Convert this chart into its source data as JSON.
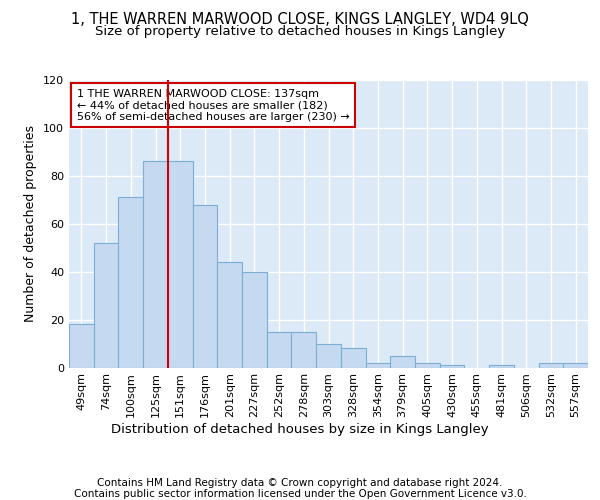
{
  "title": "1, THE WARREN MARWOOD CLOSE, KINGS LANGLEY, WD4 9LQ",
  "subtitle": "Size of property relative to detached houses in Kings Langley",
  "xlabel": "Distribution of detached houses by size in Kings Langley",
  "ylabel": "Number of detached properties",
  "bar_values": [
    18,
    52,
    71,
    86,
    86,
    68,
    44,
    40,
    15,
    15,
    10,
    8,
    2,
    5,
    2,
    1,
    0,
    1,
    0,
    2,
    2
  ],
  "bin_labels": [
    "49sqm",
    "74sqm",
    "100sqm",
    "125sqm",
    "151sqm",
    "176sqm",
    "201sqm",
    "227sqm",
    "252sqm",
    "278sqm",
    "303sqm",
    "328sqm",
    "354sqm",
    "379sqm",
    "405sqm",
    "430sqm",
    "455sqm",
    "481sqm",
    "506sqm",
    "532sqm",
    "557sqm"
  ],
  "bar_color": "#c5d9f0",
  "bar_edge_color": "#7bafd4",
  "vline_x": 3.5,
  "vline_color": "#cc0000",
  "annotation_text": "1 THE WARREN MARWOOD CLOSE: 137sqm\n← 44% of detached houses are smaller (182)\n56% of semi-detached houses are larger (230) →",
  "annotation_box_color": "#ffffff",
  "annotation_box_edge": "#cc0000",
  "ylim": [
    0,
    120
  ],
  "yticks": [
    0,
    20,
    40,
    60,
    80,
    100,
    120
  ],
  "footer": "Contains HM Land Registry data © Crown copyright and database right 2024.\nContains public sector information licensed under the Open Government Licence v3.0.",
  "bg_color": "#ffffff",
  "plot_bg_color": "#dce9f7",
  "grid_color": "#ffffff",
  "title_fontsize": 10.5,
  "subtitle_fontsize": 9.5,
  "ylabel_fontsize": 9,
  "xlabel_fontsize": 9.5,
  "tick_fontsize": 8,
  "footer_fontsize": 7.5
}
